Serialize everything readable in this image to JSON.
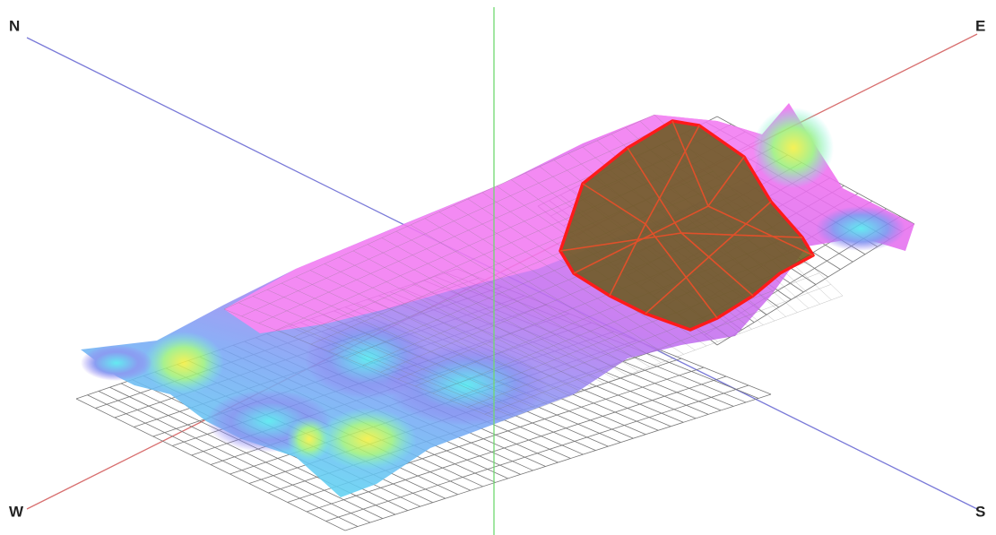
{
  "compass": {
    "north": "N",
    "east": "E",
    "west": "W",
    "south": "S"
  }
}
